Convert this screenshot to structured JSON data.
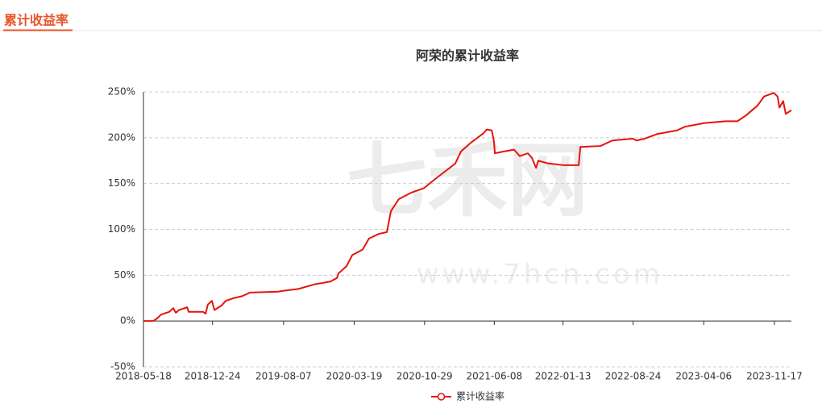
{
  "header": {
    "title": "累计收益率"
  },
  "watermark": {
    "brand": "七禾网",
    "url": "www.7hcn.com"
  },
  "chart_data": {
    "type": "line",
    "title": "阿荣的累计收益率",
    "x": [
      "2018-05-18",
      "2018-06-18",
      "2018-07-01",
      "2018-07-13",
      "2018-08-08",
      "2018-08-21",
      "2018-08-29",
      "2018-09-08",
      "2018-10-04",
      "2018-10-09",
      "2018-11-24",
      "2018-12-02",
      "2018-12-09",
      "2018-12-22",
      "2018-12-30",
      "2019-01-22",
      "2019-02-04",
      "2019-03-01",
      "2019-03-27",
      "2019-04-22",
      "2019-07-21",
      "2019-08-07",
      "2019-09-23",
      "2019-11-13",
      "2020-01-03",
      "2020-01-24",
      "2020-01-29",
      "2020-02-24",
      "2020-03-13",
      "2020-04-15",
      "2020-05-05",
      "2020-06-05",
      "2020-07-01",
      "2020-07-14",
      "2020-08-08",
      "2020-09-16",
      "2020-10-27",
      "2020-12-02",
      "2021-01-09",
      "2021-02-04",
      "2021-02-22",
      "2021-03-27",
      "2021-05-05",
      "2021-05-15",
      "2021-05-31",
      "2021-06-07",
      "2021-06-10",
      "2021-07-08",
      "2021-08-10",
      "2021-08-28",
      "2021-09-23",
      "2021-10-06",
      "2021-10-19",
      "2021-10-26",
      "2021-11-26",
      "2022-01-16",
      "2022-03-04",
      "2022-03-09",
      "2022-05-12",
      "2022-06-19",
      "2022-08-23",
      "2022-09-04",
      "2022-09-30",
      "2022-11-08",
      "2023-01-11",
      "2023-02-05",
      "2023-04-08",
      "2023-06-14",
      "2023-07-22",
      "2023-08-17",
      "2023-09-24",
      "2023-10-15",
      "2023-11-15",
      "2023-11-27",
      "2023-12-03",
      "2023-12-15",
      "2023-12-23",
      "2024-01-10"
    ],
    "series": [
      {
        "name": "累计收益率",
        "color": "#e8120c",
        "values": [
          0,
          0,
          3,
          7,
          10,
          14,
          9,
          12,
          15,
          10,
          10,
          8,
          18,
          22,
          12,
          17,
          22,
          25,
          27,
          31,
          32,
          33,
          35,
          40,
          43,
          47,
          52,
          60,
          72,
          78,
          90,
          95,
          97,
          120,
          133,
          140,
          145,
          155,
          165,
          172,
          185,
          195,
          205,
          209,
          208,
          196,
          183,
          185,
          187,
          180,
          183,
          178,
          167,
          175,
          172,
          170,
          170,
          190,
          191,
          197,
          199,
          197,
          199,
          204,
          208,
          212,
          216,
          218,
          218,
          224,
          235,
          245,
          249,
          245,
          233,
          240,
          226,
          230
        ]
      }
    ],
    "xlim": [
      "2018-05-18",
      "2024-01-10"
    ],
    "xticks": [
      "2018-05-18",
      "2018-12-24",
      "2019-08-07",
      "2020-03-19",
      "2020-10-29",
      "2021-06-08",
      "2022-01-13",
      "2022-08-24",
      "2023-04-06",
      "2023-11-17"
    ],
    "ylim": [
      -50,
      250
    ],
    "yticks": [
      {
        "value": -50,
        "label": "-50%"
      },
      {
        "value": 0,
        "label": "0%"
      },
      {
        "value": 50,
        "label": "50%"
      },
      {
        "value": 100,
        "label": "100%"
      },
      {
        "value": 150,
        "label": "150%"
      },
      {
        "value": 200,
        "label": "200%"
      },
      {
        "value": 250,
        "label": "250%"
      }
    ],
    "grid": true,
    "legend": "bottom"
  }
}
